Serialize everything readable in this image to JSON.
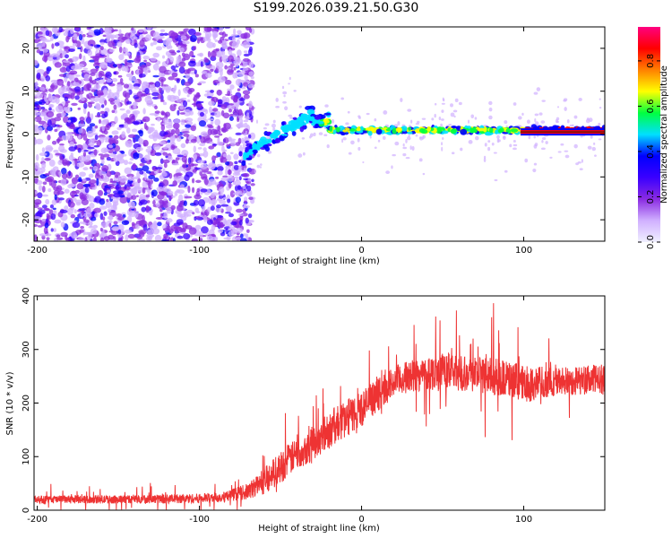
{
  "title": "S199.2026.039.21.50.G30",
  "chart_data": [
    {
      "type": "heatmap",
      "title": "",
      "xlabel": "Height of straight line (km)",
      "ylabel": "Frequency (Hz)",
      "xlim": [
        -202,
        150
      ],
      "ylim": [
        -25,
        25
      ],
      "xticks": [
        -200,
        -100,
        0,
        100
      ],
      "xtick_labels": [
        "-200",
        "-100",
        "0",
        "100"
      ],
      "yticks": [
        -20,
        -10,
        0,
        10,
        20
      ],
      "ytick_labels": [
        "-20",
        "-10",
        "0",
        "10",
        "20"
      ],
      "colorbar": {
        "label": "Normalized spectral amplitude",
        "range": [
          0,
          0.95
        ],
        "ticks": [
          0.0,
          0.2,
          0.4,
          0.6,
          0.8
        ],
        "tick_labels": [
          "0.0",
          "0.2",
          "0.4",
          "0.6",
          "0.8"
        ]
      },
      "colormap": [
        "#f0f0ff",
        "#d0b0ff",
        "#8a2be2",
        "#3a00ff",
        "#0000ff",
        "#00e0ff",
        "#00ff40",
        "#ffff00",
        "#ff8000",
        "#ff0000",
        "#ff0080"
      ],
      "features": {
        "noise_region_x": [
          -202,
          -75
        ],
        "transition_region_x": [
          -75,
          -20
        ],
        "signal_line_x": [
          -20,
          150
        ],
        "signal_frequency_hz": 0.5
      }
    },
    {
      "type": "line",
      "title": "",
      "xlabel": "Height of straight line (km)",
      "ylabel": "SNR (10 * v/v)",
      "xlim": [
        -202,
        150
      ],
      "ylim": [
        0,
        400
      ],
      "xticks": [
        -200,
        -100,
        0,
        100
      ],
      "xtick_labels": [
        "-200",
        "-100",
        "0",
        "100"
      ],
      "yticks": [
        0,
        100,
        200,
        300,
        400
      ],
      "ytick_labels": [
        "0",
        "100",
        "200",
        "300",
        "400"
      ],
      "series": [
        {
          "name": "SNR",
          "color": "#ee3333",
          "x": [
            -202,
            -150,
            -100,
            -85,
            -70,
            -60,
            -50,
            -40,
            -30,
            -20,
            -10,
            0,
            10,
            20,
            30,
            50,
            70,
            90,
            100,
            120,
            150
          ],
          "mean": [
            20,
            20,
            22,
            25,
            35,
            55,
            80,
            105,
            125,
            150,
            170,
            190,
            215,
            240,
            250,
            260,
            255,
            245,
            235,
            240,
            245
          ],
          "spread": [
            15,
            15,
            18,
            20,
            30,
            50,
            60,
            60,
            65,
            70,
            70,
            70,
            60,
            60,
            60,
            70,
            70,
            70,
            70,
            55,
            55
          ]
        }
      ]
    }
  ]
}
